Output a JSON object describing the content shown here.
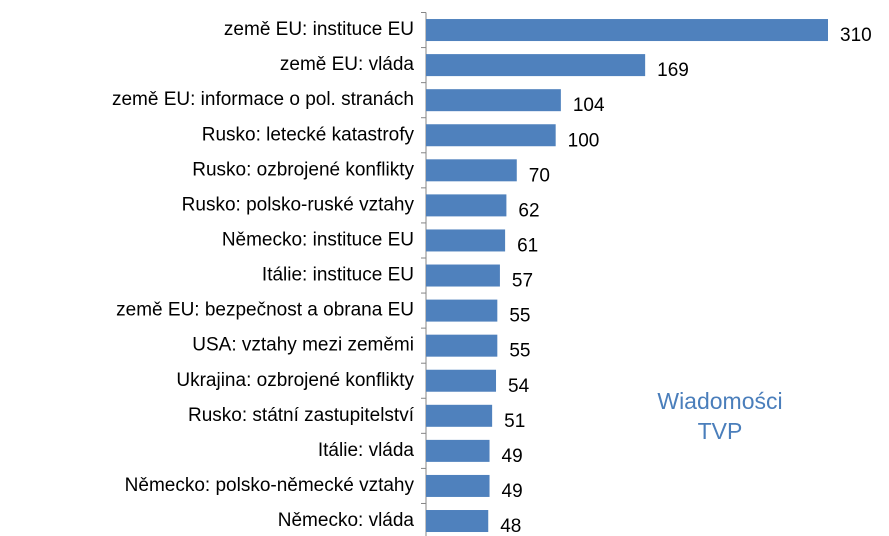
{
  "chart_data": {
    "type": "bar",
    "orientation": "horizontal",
    "categories": [
      "země EU: instituce EU",
      "země EU: vláda",
      "země EU: informace o pol. stranách",
      "Rusko: letecké katastrofy",
      "Rusko: ozbrojené konflikty",
      "Rusko: polsko-ruské vztahy",
      "Německo: instituce EU",
      "Itálie: instituce EU",
      "země EU: bezpečnost a obrana EU",
      "USA: vztahy mezi zeměmi",
      "Ukrajina: ozbrojené konflikty",
      "Rusko: státní zastupitelství",
      "Itálie: vláda",
      "Německo: polsko-německé vztahy",
      "Německo: vláda"
    ],
    "values": [
      310,
      169,
      104,
      100,
      70,
      62,
      61,
      57,
      55,
      55,
      54,
      51,
      49,
      49,
      48
    ],
    "color": "#4f81bd",
    "annotation": "Wiadomości TVP"
  }
}
